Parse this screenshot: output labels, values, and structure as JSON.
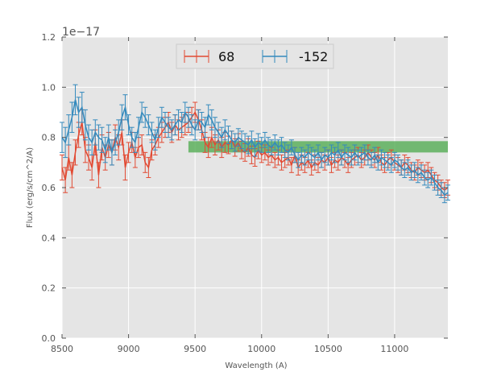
{
  "chart_data": {
    "type": "line",
    "title": "",
    "xlabel": "Wavelength (A)",
    "ylabel": "Flux (erg/s/cm^2/A)",
    "y_offset_label": "1e−17",
    "xlim": [
      8500,
      11400
    ],
    "ylim": [
      0.0,
      1.2
    ],
    "x_ticks": [
      8500,
      9000,
      9500,
      10000,
      10500,
      11000
    ],
    "x_tick_labels": [
      "8500",
      "9000",
      "9500",
      "10000",
      "10500",
      "11000"
    ],
    "y_ticks": [
      0.0,
      0.2,
      0.4,
      0.6,
      0.8,
      1.0,
      1.2
    ],
    "y_tick_labels": [
      "0.0",
      "0.2",
      "0.4",
      "0.6",
      "0.8",
      "1.0",
      "1.2"
    ],
    "grid": true,
    "legend_position": "top-center",
    "x": [
      8500,
      8525,
      8550,
      8575,
      8600,
      8625,
      8650,
      8675,
      8700,
      8725,
      8750,
      8775,
      8800,
      8825,
      8850,
      8875,
      8900,
      8925,
      8950,
      8975,
      9000,
      9025,
      9050,
      9075,
      9100,
      9125,
      9150,
      9175,
      9200,
      9225,
      9250,
      9275,
      9300,
      9325,
      9350,
      9375,
      9400,
      9425,
      9450,
      9475,
      9500,
      9525,
      9550,
      9575,
      9600,
      9625,
      9650,
      9675,
      9700,
      9725,
      9750,
      9775,
      9800,
      9825,
      9850,
      9875,
      9900,
      9925,
      9950,
      9975,
      10000,
      10025,
      10050,
      10075,
      10100,
      10125,
      10150,
      10175,
      10200,
      10225,
      10250,
      10275,
      10300,
      10325,
      10350,
      10375,
      10400,
      10425,
      10450,
      10475,
      10500,
      10525,
      10550,
      10575,
      10600,
      10625,
      10650,
      10675,
      10700,
      10725,
      10750,
      10775,
      10800,
      10825,
      10850,
      10875,
      10900,
      10925,
      10950,
      10975,
      11000,
      11025,
      11050,
      11075,
      11100,
      11125,
      11150,
      11175,
      11200,
      11225,
      11250,
      11275,
      11300,
      11325,
      11350,
      11375,
      11400
    ],
    "series": [
      {
        "name": "68",
        "color": "#e24a33",
        "values": [
          0.68,
          0.63,
          0.72,
          0.65,
          0.74,
          0.81,
          0.86,
          0.75,
          0.72,
          0.68,
          0.78,
          0.65,
          0.76,
          0.72,
          0.77,
          0.74,
          0.8,
          0.76,
          0.82,
          0.68,
          0.74,
          0.78,
          0.72,
          0.76,
          0.77,
          0.7,
          0.68,
          0.75,
          0.77,
          0.8,
          0.82,
          0.84,
          0.86,
          0.82,
          0.85,
          0.83,
          0.84,
          0.85,
          0.86,
          0.88,
          0.9,
          0.87,
          0.83,
          0.78,
          0.76,
          0.8,
          0.77,
          0.79,
          0.76,
          0.78,
          0.77,
          0.79,
          0.76,
          0.78,
          0.75,
          0.74,
          0.76,
          0.73,
          0.72,
          0.75,
          0.73,
          0.74,
          0.72,
          0.73,
          0.71,
          0.72,
          0.7,
          0.71,
          0.72,
          0.69,
          0.73,
          0.68,
          0.7,
          0.69,
          0.71,
          0.68,
          0.7,
          0.69,
          0.71,
          0.7,
          0.72,
          0.69,
          0.71,
          0.7,
          0.72,
          0.71,
          0.69,
          0.71,
          0.72,
          0.73,
          0.71,
          0.72,
          0.74,
          0.72,
          0.71,
          0.73,
          0.7,
          0.69,
          0.71,
          0.72,
          0.7,
          0.69,
          0.68,
          0.7,
          0.69,
          0.67,
          0.66,
          0.68,
          0.67,
          0.66,
          0.67,
          0.65,
          0.63,
          0.62,
          0.6,
          0.59,
          0.6
        ],
        "errors": [
          0.05,
          0.05,
          0.05,
          0.05,
          0.05,
          0.05,
          0.05,
          0.05,
          0.05,
          0.05,
          0.05,
          0.05,
          0.05,
          0.05,
          0.05,
          0.05,
          0.05,
          0.05,
          0.05,
          0.05,
          0.04,
          0.04,
          0.04,
          0.04,
          0.04,
          0.04,
          0.04,
          0.04,
          0.04,
          0.04,
          0.04,
          0.04,
          0.04,
          0.04,
          0.04,
          0.04,
          0.04,
          0.04,
          0.04,
          0.04,
          0.04,
          0.04,
          0.04,
          0.04,
          0.04,
          0.04,
          0.04,
          0.04,
          0.04,
          0.04,
          0.035,
          0.035,
          0.035,
          0.035,
          0.035,
          0.035,
          0.035,
          0.035,
          0.035,
          0.035,
          0.03,
          0.03,
          0.03,
          0.03,
          0.03,
          0.03,
          0.03,
          0.03,
          0.03,
          0.03,
          0.03,
          0.03,
          0.03,
          0.03,
          0.03,
          0.03,
          0.03,
          0.03,
          0.03,
          0.03,
          0.03,
          0.03,
          0.03,
          0.03,
          0.03,
          0.03,
          0.03,
          0.03,
          0.03,
          0.03,
          0.03,
          0.03,
          0.03,
          0.03,
          0.03,
          0.03,
          0.03,
          0.03,
          0.03,
          0.03,
          0.03,
          0.03,
          0.03,
          0.03,
          0.03,
          0.03,
          0.03,
          0.03,
          0.03,
          0.03,
          0.03,
          0.03,
          0.03,
          0.03,
          0.03,
          0.03,
          0.03
        ]
      },
      {
        "name": "-152",
        "color": "#348abd",
        "values": [
          0.8,
          0.78,
          0.83,
          0.88,
          0.95,
          0.9,
          0.92,
          0.85,
          0.8,
          0.78,
          0.82,
          0.8,
          0.79,
          0.75,
          0.8,
          0.74,
          0.78,
          0.82,
          0.88,
          0.92,
          0.85,
          0.8,
          0.78,
          0.84,
          0.9,
          0.88,
          0.85,
          0.82,
          0.79,
          0.84,
          0.88,
          0.86,
          0.84,
          0.83,
          0.85,
          0.87,
          0.86,
          0.9,
          0.88,
          0.85,
          0.83,
          0.87,
          0.86,
          0.84,
          0.89,
          0.87,
          0.84,
          0.82,
          0.8,
          0.83,
          0.81,
          0.79,
          0.78,
          0.8,
          0.79,
          0.78,
          0.77,
          0.79,
          0.76,
          0.78,
          0.77,
          0.79,
          0.77,
          0.76,
          0.78,
          0.76,
          0.77,
          0.75,
          0.74,
          0.76,
          0.73,
          0.71,
          0.73,
          0.72,
          0.74,
          0.73,
          0.72,
          0.74,
          0.71,
          0.73,
          0.72,
          0.74,
          0.73,
          0.75,
          0.72,
          0.74,
          0.73,
          0.72,
          0.74,
          0.72,
          0.73,
          0.74,
          0.72,
          0.71,
          0.73,
          0.7,
          0.72,
          0.71,
          0.7,
          0.69,
          0.71,
          0.7,
          0.68,
          0.67,
          0.68,
          0.66,
          0.67,
          0.65,
          0.66,
          0.64,
          0.63,
          0.64,
          0.62,
          0.6,
          0.59,
          0.57,
          0.58
        ],
        "errors": [
          0.06,
          0.06,
          0.06,
          0.06,
          0.06,
          0.06,
          0.06,
          0.06,
          0.05,
          0.05,
          0.05,
          0.05,
          0.05,
          0.05,
          0.05,
          0.05,
          0.05,
          0.05,
          0.05,
          0.05,
          0.04,
          0.04,
          0.04,
          0.04,
          0.04,
          0.04,
          0.04,
          0.04,
          0.04,
          0.04,
          0.04,
          0.04,
          0.04,
          0.04,
          0.04,
          0.04,
          0.04,
          0.04,
          0.04,
          0.04,
          0.04,
          0.04,
          0.04,
          0.04,
          0.04,
          0.04,
          0.04,
          0.04,
          0.04,
          0.04,
          0.035,
          0.035,
          0.035,
          0.035,
          0.035,
          0.035,
          0.035,
          0.035,
          0.035,
          0.035,
          0.03,
          0.03,
          0.03,
          0.03,
          0.03,
          0.03,
          0.03,
          0.03,
          0.03,
          0.03,
          0.03,
          0.03,
          0.03,
          0.03,
          0.03,
          0.03,
          0.03,
          0.03,
          0.03,
          0.03,
          0.03,
          0.03,
          0.03,
          0.03,
          0.03,
          0.03,
          0.03,
          0.03,
          0.03,
          0.03,
          0.03,
          0.03,
          0.03,
          0.03,
          0.03,
          0.03,
          0.03,
          0.03,
          0.03,
          0.03,
          0.03,
          0.03,
          0.03,
          0.03,
          0.03,
          0.03,
          0.03,
          0.03,
          0.03,
          0.03,
          0.03,
          0.03,
          0.03,
          0.03,
          0.03,
          0.03,
          0.03
        ]
      }
    ],
    "band": {
      "x_start": 9450,
      "x_end": 11400,
      "y_low": 0.74,
      "y_high": 0.785,
      "color": "#4aa84a"
    }
  }
}
